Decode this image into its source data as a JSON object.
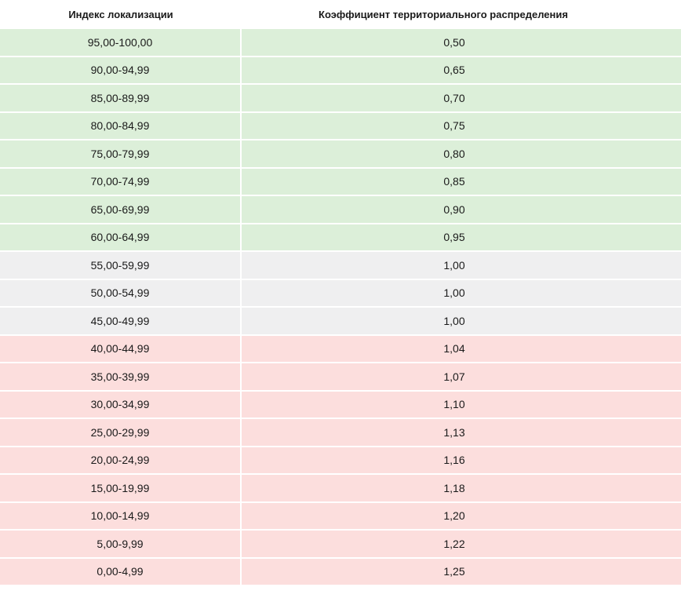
{
  "header": {
    "col1": "Индекс локализации",
    "col2": "Коэффициент территориального распределения"
  },
  "rows": [
    {
      "range": "95,00-100,00",
      "coef": "0,50",
      "group": "green"
    },
    {
      "range": "90,00-94,99",
      "coef": "0,65",
      "group": "green"
    },
    {
      "range": "85,00-89,99",
      "coef": "0,70",
      "group": "green"
    },
    {
      "range": "80,00-84,99",
      "coef": "0,75",
      "group": "green"
    },
    {
      "range": "75,00-79,99",
      "coef": "0,80",
      "group": "green"
    },
    {
      "range": "70,00-74,99",
      "coef": "0,85",
      "group": "green"
    },
    {
      "range": "65,00-69,99",
      "coef": "0,90",
      "group": "green"
    },
    {
      "range": "60,00-64,99",
      "coef": "0,95",
      "group": "green"
    },
    {
      "range": "55,00-59,99",
      "coef": "1,00",
      "group": "grey"
    },
    {
      "range": "50,00-54,99",
      "coef": "1,00",
      "group": "grey"
    },
    {
      "range": "45,00-49,99",
      "coef": "1,00",
      "group": "grey"
    },
    {
      "range": "40,00-44,99",
      "coef": "1,04",
      "group": "red"
    },
    {
      "range": "35,00-39,99",
      "coef": "1,07",
      "group": "red"
    },
    {
      "range": "30,00-34,99",
      "coef": "1,10",
      "group": "red"
    },
    {
      "range": "25,00-29,99",
      "coef": "1,13",
      "group": "red"
    },
    {
      "range": "20,00-24,99",
      "coef": "1,16",
      "group": "red"
    },
    {
      "range": "15,00-19,99",
      "coef": "1,18",
      "group": "red"
    },
    {
      "range": "10,00-14,99",
      "coef": "1,20",
      "group": "red"
    },
    {
      "range": "5,00-9,99",
      "coef": "1,22",
      "group": "red"
    },
    {
      "range": "0,00-4,99",
      "coef": "1,25",
      "group": "red"
    }
  ],
  "colors": {
    "green": "#dcefd9",
    "grey": "#efeff0",
    "red": "#fcdedd"
  }
}
